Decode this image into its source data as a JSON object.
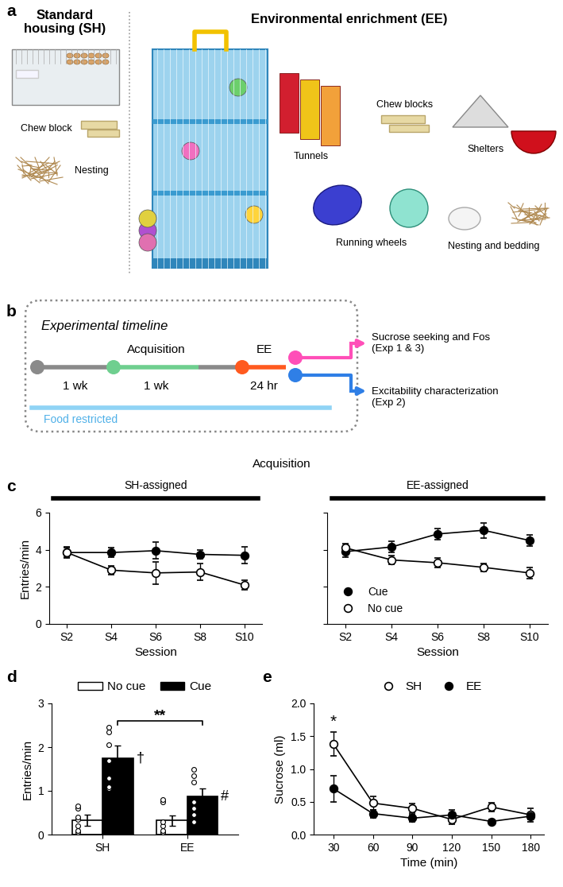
{
  "panel_labels": [
    "a",
    "b",
    "c",
    "d",
    "e"
  ],
  "panel_a": {
    "standard_housing": {
      "title": "Standard\nhousing (SH)",
      "items": [
        "Chew block",
        "Nesting"
      ]
    },
    "enrichment": {
      "title": "Environmental enrichment (EE)",
      "items": [
        "Tunnels",
        "Chew blocks",
        "Shelters",
        "Running wheels",
        "Nesting and bedding"
      ]
    }
  },
  "panel_b": {
    "title": "Experimental timeline",
    "segments": [
      {
        "below": "1 wk"
      },
      {
        "above": "Acquisition",
        "below": "1 wk"
      },
      {
        "above": "EE",
        "below": "24 hr"
      }
    ],
    "outcomes": [
      "Sucrose seeking and Fos\n(Exp 1 & 3)",
      "Excitability characterization\n(Exp 2)"
    ],
    "restriction": "Food restricted"
  },
  "panel_c": {
    "title": "Acquisition"
  },
  "chart_data": [
    {
      "type": "line",
      "title": "SH-assigned",
      "x_label": "Session",
      "y_label": "Entries/min",
      "categories": [
        "S2",
        "S4",
        "S6",
        "S8",
        "S10"
      ],
      "ylim": [
        0,
        6
      ],
      "yticks": [
        0,
        2,
        4,
        6
      ],
      "series": [
        {
          "name": "Cue",
          "color": "#000000",
          "marker": "o",
          "values": [
            3.85,
            3.85,
            3.95,
            3.75,
            3.7
          ],
          "errors": [
            0.25,
            0.25,
            0.45,
            0.25,
            0.45
          ]
        },
        {
          "name": "No cue",
          "color": "#ffffff",
          "marker": "o",
          "values": [
            3.85,
            2.9,
            2.75,
            2.8,
            2.1
          ],
          "errors": [
            0.3,
            0.25,
            0.6,
            0.45,
            0.25
          ]
        }
      ]
    },
    {
      "type": "line",
      "title": "EE-assigned",
      "x_label": "Session",
      "categories": [
        "S2",
        "S4",
        "S6",
        "S8",
        "S10"
      ],
      "ylim": [
        0,
        6
      ],
      "yticks": [
        0,
        2,
        4,
        6
      ],
      "tick_labels": "x",
      "legend": "lower left",
      "series": [
        {
          "name": "Cue",
          "color": "#000000",
          "marker": "o",
          "values": [
            3.9,
            4.15,
            4.85,
            5.05,
            4.5
          ],
          "errors": [
            0.3,
            0.3,
            0.3,
            0.4,
            0.3
          ]
        },
        {
          "name": "No cue",
          "color": "#ffffff",
          "marker": "o",
          "values": [
            4.1,
            3.45,
            3.3,
            3.05,
            2.75
          ],
          "errors": [
            0.25,
            0.25,
            0.25,
            0.2,
            0.3
          ]
        }
      ]
    },
    {
      "type": "bar",
      "y_label": "Entries/min",
      "categories": [
        "SH",
        "EE"
      ],
      "ylim": [
        0,
        3
      ],
      "yticks": [
        0,
        1,
        2,
        3
      ],
      "legend": "top",
      "series": [
        {
          "name": "No cue",
          "color": "#ffffff",
          "values": [
            0.33,
            0.32
          ],
          "errors": [
            0.13,
            0.12
          ],
          "points": [
            [
              0.05,
              0.1,
              0.2,
              0.35,
              0.4,
              0.6,
              0.65
            ],
            [
              0.05,
              0.05,
              0.1,
              0.2,
              0.3,
              0.75,
              0.8
            ]
          ]
        },
        {
          "name": "Cue",
          "color": "#000000",
          "values": [
            1.75,
            0.87
          ],
          "errors": [
            0.28,
            0.18
          ],
          "points": [
            [
              1.05,
              1.1,
              1.3,
              1.7,
              2.05,
              2.35,
              2.45
            ],
            [
              0.3,
              0.45,
              0.6,
              0.75,
              1.2,
              1.35,
              1.5
            ]
          ]
        }
      ],
      "annotations": [
        {
          "text": "**",
          "series": "Cue",
          "categories": [
            "SH",
            "EE"
          ]
        },
        {
          "text": "†",
          "series": "Cue",
          "category": "SH"
        },
        {
          "text": "#",
          "series": "Cue",
          "category": "EE"
        }
      ]
    },
    {
      "type": "line",
      "x_label": "Time (min)",
      "y_label": "Sucrose (ml)",
      "x": [
        30,
        60,
        90,
        120,
        150,
        180
      ],
      "xlim": [
        15,
        190
      ],
      "xticks": [
        30,
        60,
        90,
        120,
        150,
        180
      ],
      "ylim": [
        0,
        2
      ],
      "yticks": [
        {
          "value": 0,
          "label": "0.0"
        },
        {
          "value": 0.5,
          "label": "0.5"
        },
        {
          "value": 1,
          "label": "1.0"
        },
        {
          "value": 1.5,
          "label": "1.5"
        },
        {
          "value": 2,
          "label": "2.0"
        }
      ],
      "legend": "top",
      "series": [
        {
          "name": "SH",
          "color": "#ffffff",
          "marker": "o",
          "values": [
            1.38,
            0.48,
            0.4,
            0.23,
            0.42,
            0.3
          ],
          "errors": [
            0.18,
            0.1,
            0.07,
            0.07,
            0.07,
            0.1
          ]
        },
        {
          "name": "EE",
          "color": "#000000",
          "marker": "o",
          "values": [
            0.7,
            0.32,
            0.25,
            0.3,
            0.2,
            0.28
          ],
          "errors": [
            0.2,
            0.06,
            0.05,
            0.08,
            0.03,
            0.05
          ]
        }
      ],
      "annotations": [
        {
          "text": "*",
          "x": 30
        }
      ]
    }
  ]
}
